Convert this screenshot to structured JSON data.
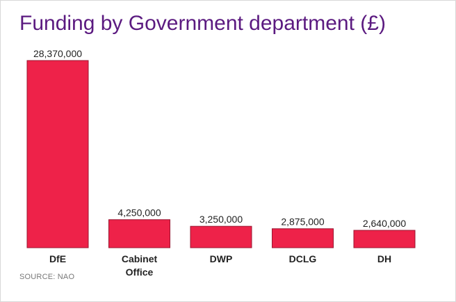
{
  "chart_data": {
    "type": "bar",
    "title": "Funding by Government department (£)",
    "categories": [
      [
        "DfE"
      ],
      [
        "Cabinet",
        "Office"
      ],
      [
        "DWP"
      ],
      [
        "DCLG"
      ],
      [
        "DH"
      ]
    ],
    "values": [
      28370000,
      4250000,
      3250000,
      2875000,
      2640000
    ],
    "value_labels": [
      "28,370,000",
      "4,250,000",
      "3,250,000",
      "2,875,000",
      "2,640,000"
    ],
    "xlabel": "",
    "ylabel": "",
    "ylim": [
      0,
      28370000
    ],
    "grid": false,
    "legend": "none"
  },
  "source": {
    "prefix": "SOURCE: ",
    "name": "NAO"
  },
  "colors": {
    "bar": "#ee2249",
    "bar_stroke": "#9a1530",
    "title": "#5b1a80"
  }
}
